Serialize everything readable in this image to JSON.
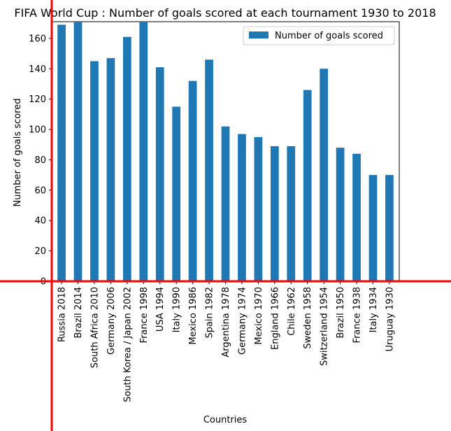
{
  "chart_data": {
    "type": "bar",
    "title": "FIFA World Cup : Number of goals scored at each tournament 1930 to 2018",
    "xlabel": "Countries",
    "ylabel": "Number of goals scored",
    "categories": [
      "Russia 2018",
      "Brazil 2014",
      "South Africa 2010",
      "Germany 2006",
      "South Korea / Japan 2002",
      "France 1998",
      "USA 1994",
      "Italy 1990",
      "Mexico 1986",
      "Spain 1982",
      "Argentina 1978",
      "Germany 1974",
      "Mexico 1970",
      "England 1966",
      "Chile 1962",
      "Sweden 1958",
      "Switzerland 1954",
      "Brazil 1950",
      "France 1938",
      "Italy 1934",
      "Uruguay 1930"
    ],
    "series": [
      {
        "name": "Number of goals scored",
        "values": [
          169,
          171,
          145,
          147,
          161,
          171,
          141,
          115,
          132,
          146,
          102,
          97,
          95,
          89,
          89,
          126,
          140,
          88,
          84,
          70,
          70
        ]
      }
    ],
    "ylim": [
      0,
      171
    ],
    "yticks": [
      0,
      20,
      40,
      60,
      80,
      100,
      120,
      140,
      160
    ],
    "legend_position": "top-right",
    "grid": false,
    "colors": {
      "bar": "#1f77b4",
      "overlay_lines": "#ff0000"
    }
  }
}
